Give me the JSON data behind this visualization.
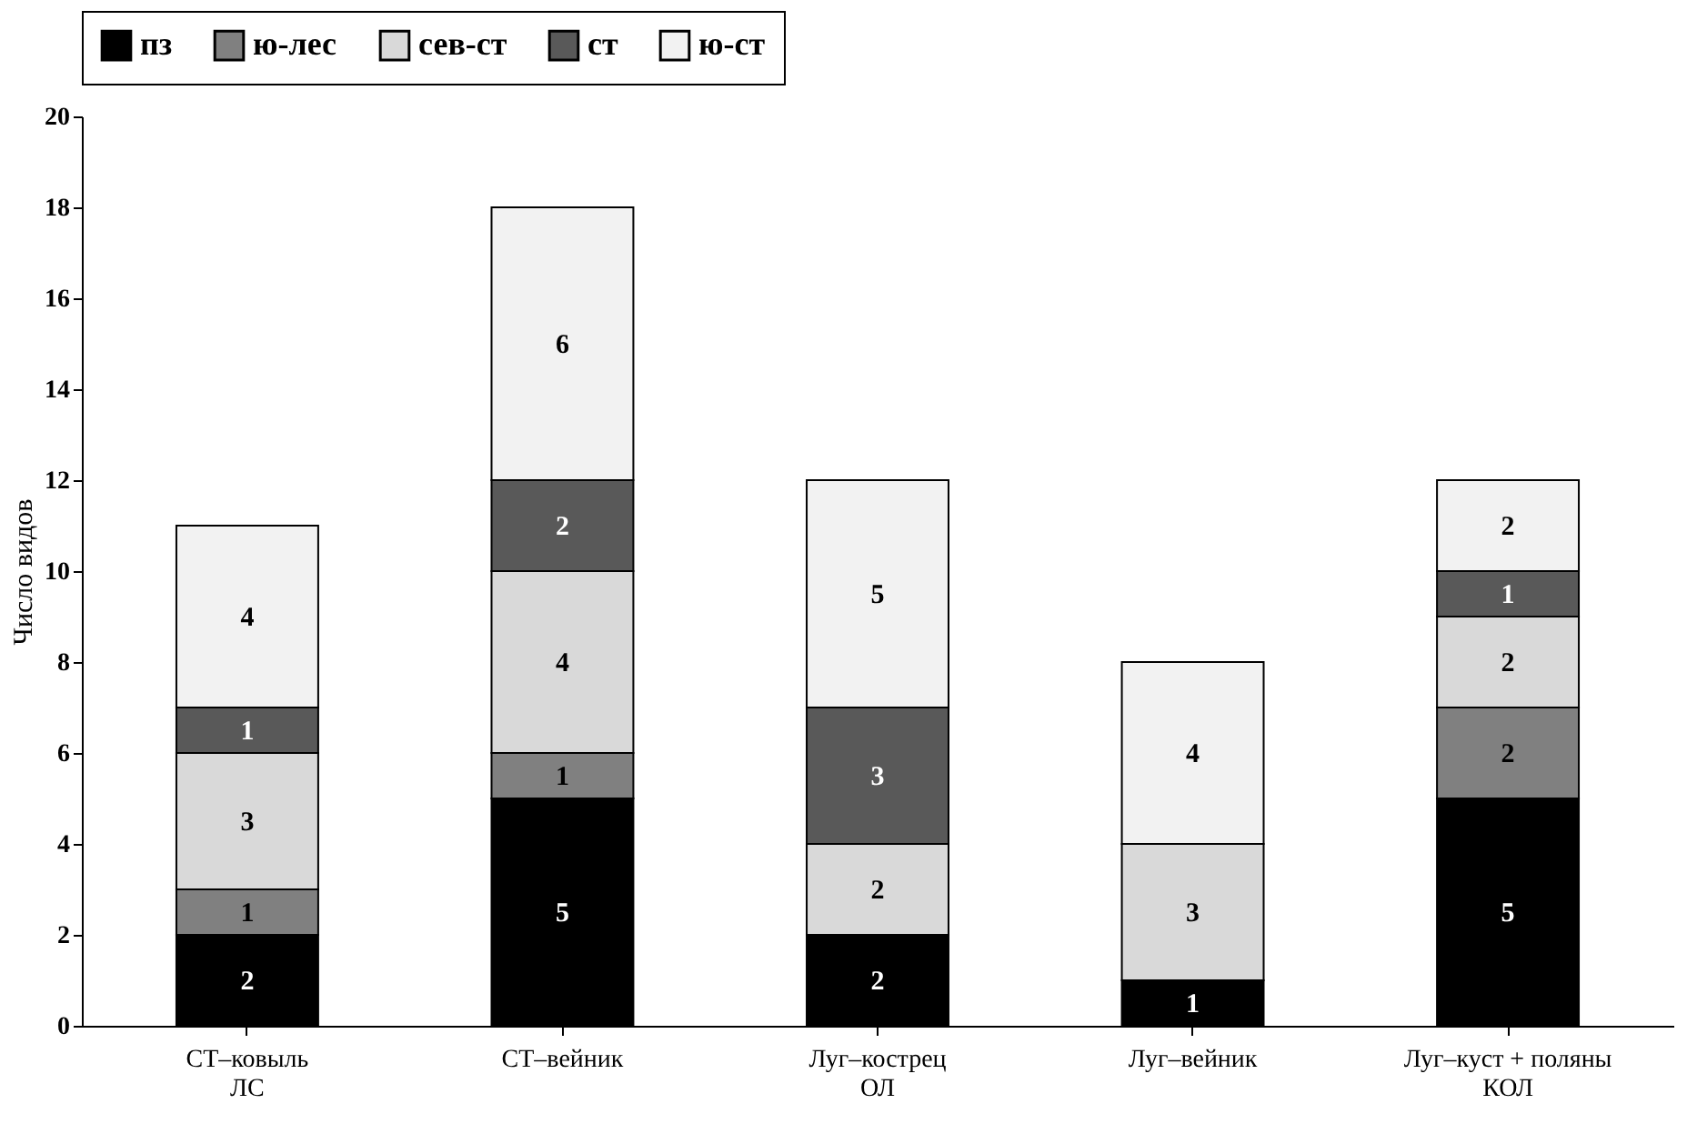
{
  "chart_data": {
    "type": "bar",
    "stacked": true,
    "ylabel": "Число видов",
    "categories": [
      "СТ–ковыль\nЛС",
      "СТ–вейник",
      "Луг–кострец\nОЛ",
      "Луг–вейник",
      "Луг–куст + поляны\nКОЛ"
    ],
    "series": [
      {
        "name": "пз",
        "color": "#000000",
        "values": [
          2,
          5,
          2,
          1,
          5
        ]
      },
      {
        "name": "ю-лес",
        "color": "#808080",
        "values": [
          1,
          1,
          null,
          null,
          2
        ]
      },
      {
        "name": "сев-ст",
        "color": "#d9d9d9",
        "values": [
          3,
          4,
          2,
          3,
          2
        ]
      },
      {
        "name": "ст",
        "color": "#595959",
        "values": [
          1,
          2,
          3,
          null,
          1
        ]
      },
      {
        "name": "ю-ст",
        "color": "#f2f2f2",
        "values": [
          4,
          6,
          5,
          4,
          2
        ]
      }
    ],
    "ylim": [
      0,
      20
    ],
    "yticks": [
      0,
      2,
      4,
      6,
      8,
      10,
      12,
      14,
      16,
      18,
      20
    ],
    "grid": false,
    "legend": "top",
    "data_labels": true
  }
}
